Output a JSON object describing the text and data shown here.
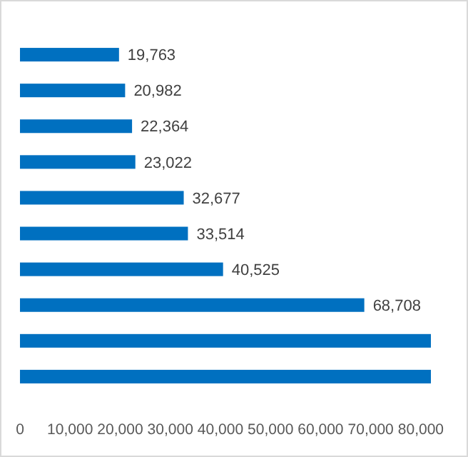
{
  "chart_data": {
    "type": "bar",
    "orientation": "horizontal",
    "categories": [
      null,
      null,
      null,
      null,
      null,
      null,
      null,
      null,
      null,
      null
    ],
    "values": [
      19763,
      20982,
      22364,
      23022,
      32677,
      33514,
      40525,
      68708,
      82000,
      82000
    ],
    "value_labels": [
      "19,763",
      "20,982",
      "22,364",
      "23,022",
      "32,677",
      "33,514",
      "40,525",
      "68,708",
      null,
      null
    ],
    "color": "#0070c0",
    "xlim": [
      0,
      82000
    ],
    "xticks": [
      {
        "value": 0,
        "label": "0"
      },
      {
        "value": 10000,
        "label": "10,000"
      },
      {
        "value": 20000,
        "label": "20,000"
      },
      {
        "value": 30000,
        "label": "30,000"
      },
      {
        "value": 40000,
        "label": "40,000"
      },
      {
        "value": 50000,
        "label": "50,000"
      },
      {
        "value": 60000,
        "label": "60,000"
      },
      {
        "value": 70000,
        "label": "70,000"
      },
      {
        "value": 80000,
        "label": "80,000"
      }
    ],
    "grid": false
  }
}
